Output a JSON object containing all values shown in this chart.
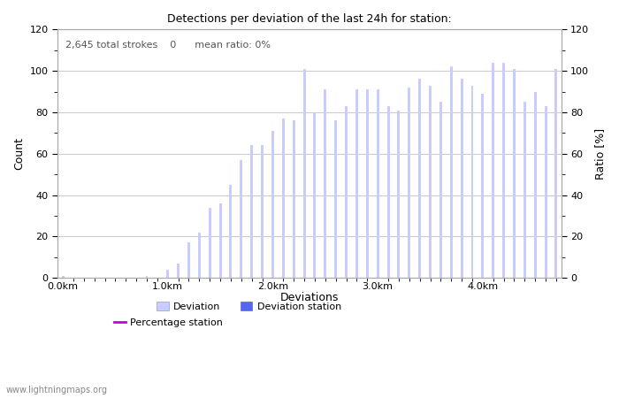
{
  "title": "Detections per deviation of the last 24h for station:",
  "annotation": "2,645 total strokes    0      mean ratio: 0%",
  "xlabel": "Deviations",
  "ylabel_left": "Count",
  "ylabel_right": "Ratio [%]",
  "watermark": "www.lightningmaps.org",
  "ylim": [
    0,
    120
  ],
  "bar_color_light": "#c8ccff",
  "bar_color_dark": "#5566ee",
  "line_color": "#cc00cc",
  "xtick_labels": [
    "0.0km",
    "1.0km",
    "2.0km",
    "3.0km",
    "4.0km"
  ],
  "xtick_positions": [
    0,
    10,
    20,
    30,
    40
  ],
  "bar_values": [
    1,
    0,
    0,
    0,
    0,
    0,
    0,
    0,
    1,
    0,
    4,
    7,
    17,
    22,
    34,
    36,
    45,
    57,
    64,
    64,
    71,
    77,
    76,
    101,
    80,
    91,
    76,
    83,
    91,
    91,
    91,
    83,
    81,
    92,
    96,
    93,
    85,
    102,
    96,
    93,
    89,
    104,
    104,
    101,
    85,
    90,
    83,
    101
  ],
  "num_bars": 48,
  "bar_width": 0.25,
  "grid_color": "#cccccc",
  "ytick_minor": [
    10,
    30,
    50,
    70,
    90,
    110
  ],
  "ytick_major": [
    0,
    20,
    40,
    60,
    80,
    100,
    120
  ],
  "background_color": "#ffffff",
  "spine_color": "#aaaaaa",
  "tick_color": "#555555",
  "annotation_color": "#555555",
  "title_fontsize": 9,
  "axis_fontsize": 8,
  "annotation_fontsize": 8
}
